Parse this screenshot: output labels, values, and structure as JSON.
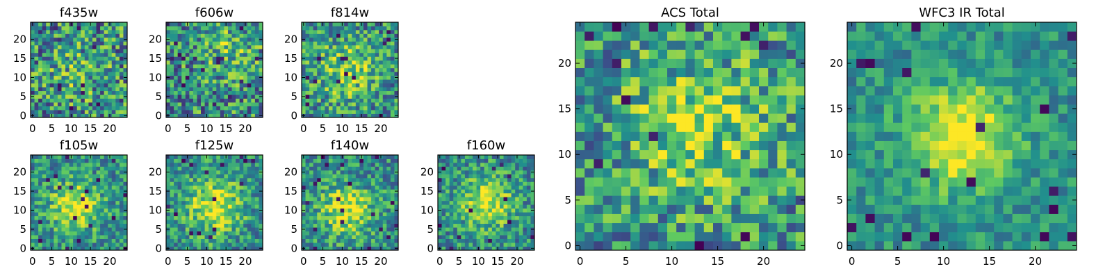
{
  "colors": {
    "background": "#ffffff",
    "axis": "#000000",
    "colormap": [
      "#440154",
      "#3b528b",
      "#21908d",
      "#5ec962",
      "#fde725"
    ]
  },
  "chart_data": [
    {
      "title": "f435w",
      "type": "heatmap",
      "grid_size": 25,
      "x_ticks": [
        0,
        5,
        10,
        15,
        20
      ],
      "y_ticks": [
        0,
        5,
        10,
        15,
        20
      ],
      "xlim": [
        -0.5,
        24.5
      ],
      "ylim": [
        -0.5,
        24.5
      ],
      "colormap": "viridis",
      "blob": {
        "x": 12,
        "y": 12,
        "sigma": 5,
        "amp": 0.15
      },
      "noise": 0.48,
      "seed": 11
    },
    {
      "title": "f606w",
      "type": "heatmap",
      "grid_size": 25,
      "x_ticks": [
        0,
        5,
        10,
        15,
        20
      ],
      "y_ticks": [
        0,
        5,
        10,
        15,
        20
      ],
      "xlim": [
        -0.5,
        24.5
      ],
      "ylim": [
        -0.5,
        24.5
      ],
      "colormap": "viridis",
      "blob": {
        "x": 16,
        "y": 17,
        "sigma": 5,
        "amp": 0.2
      },
      "noise": 0.45,
      "seed": 23
    },
    {
      "title": "f814w",
      "type": "heatmap",
      "grid_size": 25,
      "x_ticks": [
        0,
        5,
        10,
        15,
        20
      ],
      "y_ticks": [
        0,
        5,
        10,
        15,
        20
      ],
      "xlim": [
        -0.5,
        24.5
      ],
      "ylim": [
        -0.5,
        24.5
      ],
      "colormap": "viridis",
      "blob": {
        "x": 11,
        "y": 12,
        "sigma": 5.5,
        "amp": 0.3
      },
      "noise": 0.4,
      "seed": 37
    },
    {
      "title": "f105w",
      "type": "heatmap",
      "grid_size": 25,
      "x_ticks": [
        0,
        5,
        10,
        15,
        20
      ],
      "y_ticks": [
        0,
        5,
        10,
        15,
        20
      ],
      "xlim": [
        -0.5,
        24.5
      ],
      "ylim": [
        -0.5,
        24.5
      ],
      "colormap": "viridis",
      "blob": {
        "x": 11,
        "y": 11,
        "sigma": 4.5,
        "amp": 0.45
      },
      "noise": 0.32,
      "seed": 41
    },
    {
      "title": "f125w",
      "type": "heatmap",
      "grid_size": 25,
      "x_ticks": [
        0,
        5,
        10,
        15,
        20
      ],
      "y_ticks": [
        0,
        5,
        10,
        15,
        20
      ],
      "xlim": [
        -0.5,
        24.5
      ],
      "ylim": [
        -0.5,
        24.5
      ],
      "colormap": "viridis",
      "blob": {
        "x": 12,
        "y": 11,
        "sigma": 5,
        "amp": 0.45
      },
      "noise": 0.33,
      "seed": 53
    },
    {
      "title": "f140w",
      "type": "heatmap",
      "grid_size": 25,
      "x_ticks": [
        0,
        5,
        10,
        15,
        20
      ],
      "y_ticks": [
        0,
        5,
        10,
        15,
        20
      ],
      "xlim": [
        -0.5,
        24.5
      ],
      "ylim": [
        -0.5,
        24.5
      ],
      "colormap": "viridis",
      "blob": {
        "x": 11,
        "y": 10,
        "sigma": 4.5,
        "amp": 0.45
      },
      "noise": 0.33,
      "seed": 67
    },
    {
      "title": "f160w",
      "type": "heatmap",
      "grid_size": 25,
      "x_ticks": [
        0,
        5,
        10,
        15,
        20
      ],
      "y_ticks": [
        0,
        5,
        10,
        15,
        20
      ],
      "xlim": [
        -0.5,
        24.5
      ],
      "ylim": [
        -0.5,
        24.5
      ],
      "colormap": "viridis",
      "blob": {
        "x": 12,
        "y": 12,
        "sigma": 4.5,
        "amp": 0.45
      },
      "noise": 0.33,
      "seed": 79
    },
    {
      "title": "ACS Total",
      "type": "heatmap",
      "grid_size": 25,
      "x_ticks": [
        0,
        5,
        10,
        15,
        20
      ],
      "y_ticks": [
        0,
        5,
        10,
        15,
        20
      ],
      "xlim": [
        -0.5,
        24.5
      ],
      "ylim": [
        -0.5,
        24.5
      ],
      "colormap": "viridis",
      "blob": {
        "x": 13,
        "y": 13,
        "sigma": 6,
        "amp": 0.3
      },
      "noise": 0.4,
      "seed": 97
    },
    {
      "title": "WFC3 IR Total",
      "type": "heatmap",
      "grid_size": 25,
      "x_ticks": [
        0,
        5,
        10,
        15,
        20
      ],
      "y_ticks": [
        0,
        5,
        10,
        15,
        20
      ],
      "xlim": [
        -0.5,
        24.5
      ],
      "ylim": [
        -0.5,
        24.5
      ],
      "colormap": "viridis",
      "blob": {
        "x": 12,
        "y": 12,
        "sigma": 4,
        "amp": 0.55
      },
      "noise": 0.22,
      "seed": 113
    }
  ]
}
